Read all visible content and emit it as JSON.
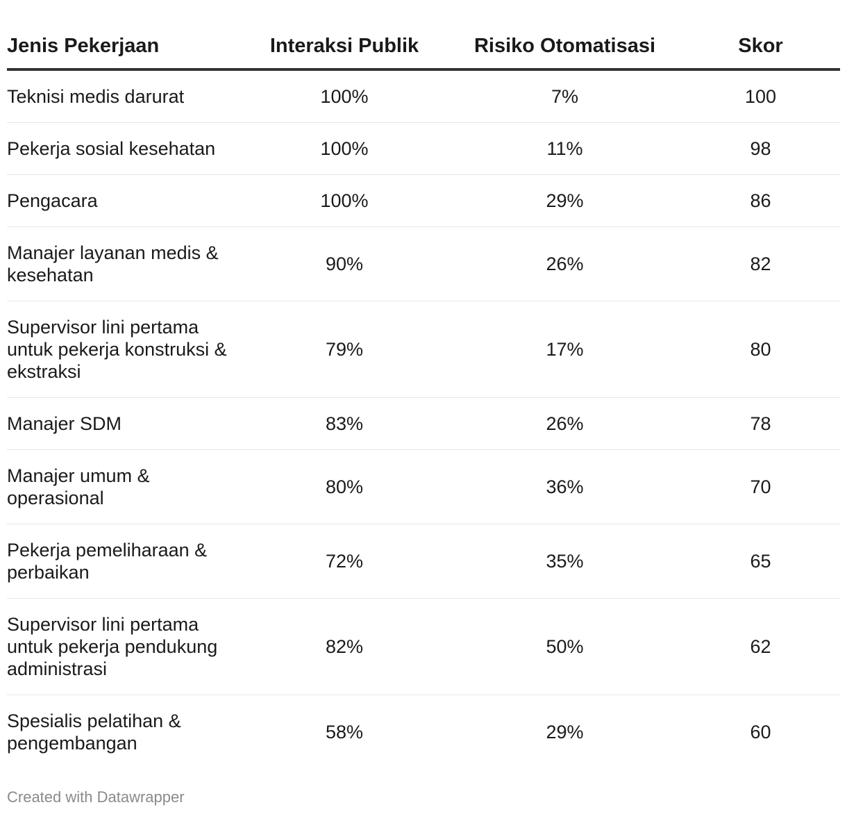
{
  "chart_data": {
    "type": "table",
    "columns": [
      "Jenis Pekerjaan",
      "Interaksi Publik",
      "Risiko Otomatisasi",
      "Skor"
    ],
    "rows": [
      {
        "job": "Teknisi medis darurat",
        "interaction": "100%",
        "risk": "7%",
        "score": "100"
      },
      {
        "job": "Pekerja sosial kesehatan",
        "interaction": "100%",
        "risk": "11%",
        "score": "98"
      },
      {
        "job": "Pengacara",
        "interaction": "100%",
        "risk": "29%",
        "score": "86"
      },
      {
        "job": "Manajer layanan medis & kesehatan",
        "interaction": "90%",
        "risk": "26%",
        "score": "82"
      },
      {
        "job": "Supervisor lini pertama untuk pekerja konstruksi & ekstraksi",
        "interaction": "79%",
        "risk": "17%",
        "score": "80"
      },
      {
        "job": "Manajer SDM",
        "interaction": "83%",
        "risk": "26%",
        "score": "78"
      },
      {
        "job": "Manajer umum & operasional",
        "interaction": "80%",
        "risk": "36%",
        "score": "70"
      },
      {
        "job": "Pekerja pemeliharaan & perbaikan",
        "interaction": "72%",
        "risk": "35%",
        "score": "65"
      },
      {
        "job": "Supervisor lini pertama untuk pekerja pendukung administrasi",
        "interaction": "82%",
        "risk": "50%",
        "score": "62"
      },
      {
        "job": "Spesialis pelatihan & pengembangan",
        "interaction": "58%",
        "risk": "29%",
        "score": "60"
      }
    ]
  },
  "footer": {
    "credit": "Created with Datawrapper"
  },
  "colors": {
    "text": "#1a1a1a",
    "header_rule": "#333333",
    "row_rule": "#e6e6e6",
    "credit": "#8a8a8a"
  }
}
